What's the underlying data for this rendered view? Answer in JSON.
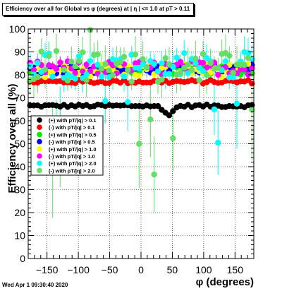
{
  "header": {
    "title": "Efficiency over all for Global vs φ (degrees) at |  η | <= 1.0 at pT > 0.11"
  },
  "footer": {
    "timestamp": "Wed Apr  1 09:30:40 2020"
  },
  "chart_data": {
    "type": "scatter",
    "title": "Efficiency over all for Global vs φ (degrees) at |  η | <= 1.0 at pT > 0.11",
    "xlabel": "φ (degrees)",
    "ylabel": "Efficiency over all (%)",
    "xlim": [
      -180,
      180
    ],
    "ylim": [
      0,
      100
    ],
    "xticks": [
      -150,
      -100,
      -50,
      0,
      50,
      100,
      150
    ],
    "yticks": [
      0,
      10,
      20,
      30,
      40,
      50,
      60,
      70,
      80,
      90,
      100
    ],
    "grid": true,
    "legend_position": "left-middle",
    "series": [
      {
        "name": "(+) with pT/|q| > 0.1",
        "color": "#000000",
        "base": 66.5,
        "noise": 0.6,
        "err": 0.4
      },
      {
        "name": "(-) with pT/|q| > 0.1",
        "color": "#ff0000",
        "base": 77,
        "noise": 0.8,
        "err": 0.6
      },
      {
        "name": "(+) with pT/|q| > 0.5",
        "color": "#00ee00",
        "base": 82,
        "noise": 2.0,
        "err": 1.2
      },
      {
        "name": "(-) with pT/|q| > 0.5",
        "color": "#0000ff",
        "base": 82.5,
        "noise": 2.0,
        "err": 1.3
      },
      {
        "name": "(+) with pT/|q| > 1.0",
        "color": "#ffff00",
        "base": 82,
        "noise": 3.0,
        "err": 2.0
      },
      {
        "name": "(-) with pT/|q| > 1.0",
        "color": "#ff00ff",
        "base": 83,
        "noise": 3.0,
        "err": 2.2
      },
      {
        "name": "(+) with pT/|q| > 2.0",
        "color": "#00ffff",
        "base": 84,
        "noise": 6.0,
        "err": 5.0
      },
      {
        "name": "(-) with pT/|q| > 2.0",
        "color": "#66dd66",
        "base": 84,
        "noise": 7.0,
        "err": 6.0
      }
    ]
  }
}
